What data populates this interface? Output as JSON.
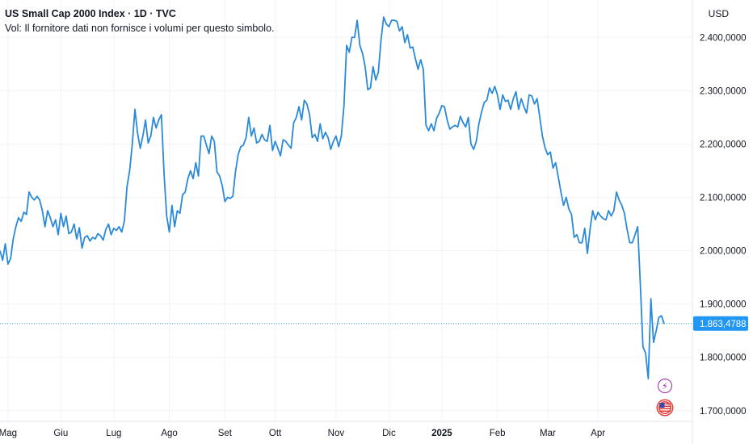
{
  "legend": {
    "title": "US Small Cap 2000 Index · 1D · TVC",
    "volume_note": "Vol: Il fornitore dati non fornisce i volumi per questo simbolo."
  },
  "currency_label": "USD",
  "events": {
    "lightning_icon": "⚡",
    "flag_icon": "us-flag"
  },
  "colors": {
    "line": "#2a8ad8",
    "last_price_bg": "#2196f3",
    "grid": "#f0f3fa",
    "text": "#131722"
  },
  "chart_data": {
    "type": "line",
    "title": "US Small Cap 2000 Index",
    "xlabel": "",
    "ylabel": "",
    "ylim": [
      1680,
      2470
    ],
    "y_ticks": [
      1700,
      1800,
      1900,
      2000,
      2100,
      2200,
      2300,
      2400
    ],
    "y_tick_labels": [
      "1.700,0000",
      "1.800,0000",
      "1.900,0000",
      "2.000,0000",
      "2.100,0000",
      "2.200,0000",
      "2.300,0000",
      "2.400,0000"
    ],
    "x_ticks": [
      {
        "label": "Mag",
        "index": 3,
        "bold": false
      },
      {
        "label": "Giu",
        "index": 23,
        "bold": false
      },
      {
        "label": "Lug",
        "index": 43,
        "bold": false
      },
      {
        "label": "Ago",
        "index": 64,
        "bold": false
      },
      {
        "label": "Set",
        "index": 85,
        "bold": false
      },
      {
        "label": "Ott",
        "index": 104,
        "bold": false
      },
      {
        "label": "Nov",
        "index": 127,
        "bold": false
      },
      {
        "label": "Dic",
        "index": 147,
        "bold": false
      },
      {
        "label": "2025",
        "index": 167,
        "bold": true
      },
      {
        "label": "Feb",
        "index": 188,
        "bold": false
      },
      {
        "label": "Mar",
        "index": 207,
        "bold": false
      },
      {
        "label": "Apr",
        "index": 226,
        "bold": false
      }
    ],
    "last_value": 1863.4788,
    "last_value_label": "1.863,4788",
    "series": [
      {
        "name": "US Small Cap 2000 Index",
        "values": [
          2000,
          1982,
          2013,
          1975,
          1985,
          2022,
          2045,
          2062,
          2055,
          2072,
          2068,
          2110,
          2100,
          2095,
          2102,
          2095,
          2075,
          2045,
          2075,
          2062,
          2045,
          2058,
          2030,
          2070,
          2045,
          2065,
          2032,
          2035,
          2050,
          2022,
          2043,
          2005,
          2025,
          2028,
          2018,
          2025,
          2022,
          2032,
          2028,
          2020,
          2040,
          2050,
          2030,
          2042,
          2038,
          2045,
          2035,
          2055,
          2120,
          2150,
          2200,
          2265,
          2220,
          2192,
          2215,
          2245,
          2202,
          2215,
          2250,
          2230,
          2245,
          2255,
          2145,
          2065,
          2035,
          2085,
          2045,
          2075,
          2070,
          2105,
          2110,
          2135,
          2150,
          2135,
          2165,
          2140,
          2215,
          2215,
          2198,
          2182,
          2215,
          2205,
          2148,
          2140,
          2122,
          2092,
          2100,
          2098,
          2102,
          2148,
          2180,
          2195,
          2198,
          2212,
          2250,
          2215,
          2230,
          2202,
          2205,
          2218,
          2208,
          2205,
          2235,
          2188,
          2205,
          2192,
          2178,
          2208,
          2205,
          2198,
          2192,
          2240,
          2250,
          2270,
          2245,
          2282,
          2275,
          2255,
          2212,
          2218,
          2205,
          2238,
          2210,
          2222,
          2212,
          2190,
          2205,
          2215,
          2195,
          2215,
          2272,
          2385,
          2372,
          2400,
          2400,
          2432,
          2385,
          2370,
          2345,
          2302,
          2305,
          2345,
          2320,
          2335,
          2395,
          2438,
          2425,
          2420,
          2432,
          2432,
          2430,
          2412,
          2420,
          2390,
          2405,
          2380,
          2382,
          2360,
          2340,
          2358,
          2340,
          2235,
          2225,
          2238,
          2225,
          2248,
          2258,
          2272,
          2270,
          2245,
          2228,
          2232,
          2235,
          2232,
          2252,
          2240,
          2232,
          2250,
          2200,
          2190,
          2205,
          2238,
          2260,
          2278,
          2282,
          2305,
          2295,
          2308,
          2292,
          2265,
          2292,
          2280,
          2282,
          2265,
          2285,
          2298,
          2265,
          2285,
          2270,
          2258,
          2292,
          2290,
          2275,
          2285,
          2250,
          2215,
          2193,
          2180,
          2185,
          2155,
          2165,
          2138,
          2110,
          2085,
          2100,
          2078,
          2068,
          2025,
          2030,
          2015,
          2015,
          2042,
          1995,
          2040,
          2075,
          2058,
          2072,
          2065,
          2060,
          2058,
          2075,
          2065,
          2075,
          2110,
          2095,
          2085,
          2070,
          2040,
          2015,
          2015,
          2030,
          2045,
          1938,
          1820,
          1808,
          1760,
          1910,
          1828,
          1850,
          1875,
          1878,
          1863
        ]
      }
    ]
  }
}
